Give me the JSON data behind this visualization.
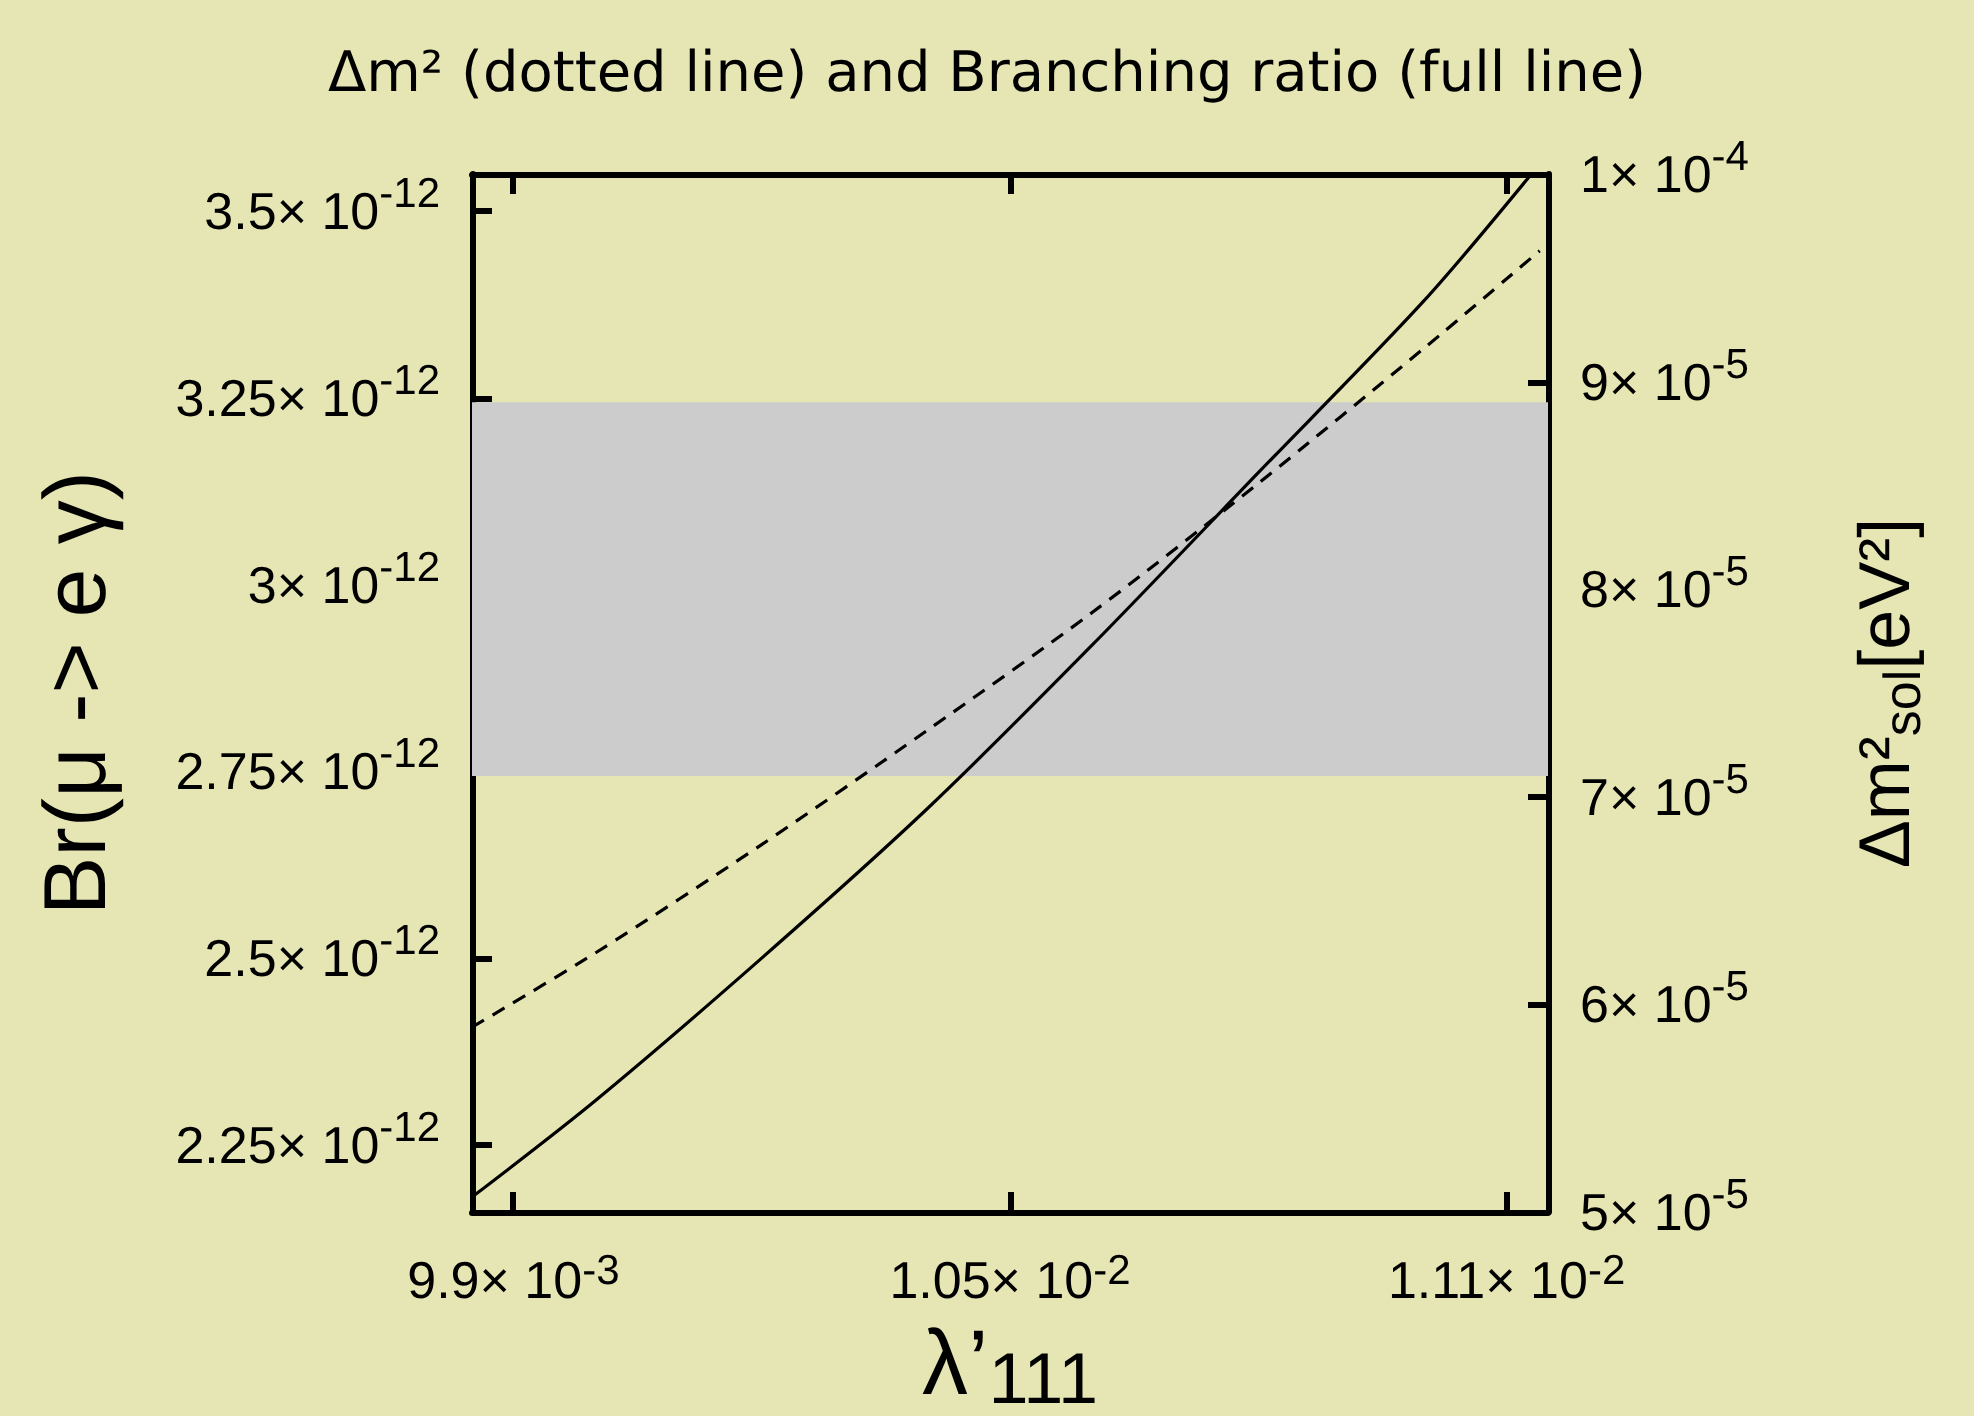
{
  "chart_data": {
    "type": "line",
    "title": "Δm² (dotted line) and Branching ratio (full line)",
    "xlabel": "λ’$_{111}$",
    "ylabel": "Br(μ -> e γ)",
    "y2label": "Δm²$_{sol}$[eV²]",
    "xlim": [
      0.00985,
      0.01115
    ],
    "xticks": [
      {
        "value": 0.0099,
        "label": "9.9× 10$^{-3}$"
      },
      {
        "value": 0.0105,
        "label": "1.05× 10$^{-2}$"
      },
      {
        "value": 0.0111,
        "label": "1.11× 10$^{-2}$"
      }
    ],
    "ylim": [
      2.16e-12,
      3.55e-12
    ],
    "yticks": [
      {
        "value": 2.25e-12,
        "label": "2.25× 10$^{-12}$"
      },
      {
        "value": 2.5e-12,
        "label": "2.5× 10$^{-12}$"
      },
      {
        "value": 2.75e-12,
        "label": "2.75× 10$^{-12}$"
      },
      {
        "value": 3e-12,
        "label": "3× 10$^{-12}$"
      },
      {
        "value": 3.25e-12,
        "label": "3.25× 10$^{-12}$"
      },
      {
        "value": 3.5e-12,
        "label": "3.5× 10$^{-12}$"
      }
    ],
    "y2lim": [
      5e-05,
      0.0001
    ],
    "y2ticks": [
      {
        "value": 5e-05,
        "label": "5× 10$^{-5}$"
      },
      {
        "value": 6e-05,
        "label": "6× 10$^{-5}$"
      },
      {
        "value": 7e-05,
        "label": "7× 10$^{-5}$"
      },
      {
        "value": 8e-05,
        "label": "8× 10$^{-5}$"
      },
      {
        "value": 9e-05,
        "label": "9× 10$^{-5}$"
      },
      {
        "value": 0.0001,
        "label": "1× 10$^{-4}$"
      }
    ],
    "series": [
      {
        "color": "#000000",
        "line_style": "solid",
        "x": [
          0.00985,
          0.01,
          0.0102,
          0.0104,
          0.0106,
          0.0108,
          0.011,
          0.01113
        ],
        "values": [
          2.18e-12,
          2.31e-12,
          2.5e-12,
          2.7e-12,
          2.92e-12,
          3.15e-12,
          3.38e-12,
          3.55e-12
        ]
      },
      {
        "color": "#000000",
        "line_style": "dashed",
        "axis": "y2",
        "x": [
          0.00985,
          0.01,
          0.0102,
          0.0104,
          0.0106,
          0.0108,
          0.011,
          0.01114
        ],
        "values": [
          5.89e-05,
          6.25e-05,
          6.77e-05,
          7.32e-05,
          7.89e-05,
          8.51e-05,
          9.16e-05,
          9.63e-05
        ]
      }
    ],
    "bands": [
      {
        "axis": "y2",
        "from": 7.1e-05,
        "to": 8.9e-05,
        "color": "#cccccc"
      }
    ],
    "marker": "none"
  }
}
